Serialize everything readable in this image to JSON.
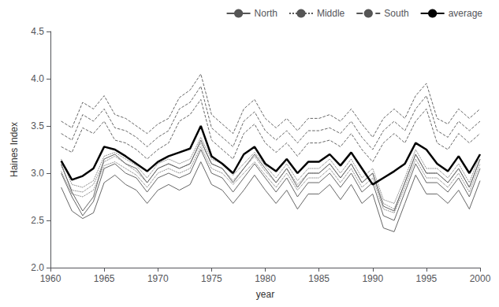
{
  "chart_data": {
    "type": "line",
    "x_label": "year",
    "y_label": "Haines Index",
    "x": [
      1961,
      1962,
      1963,
      1964,
      1965,
      1966,
      1967,
      1968,
      1969,
      1970,
      1971,
      1972,
      1973,
      1974,
      1975,
      1976,
      1977,
      1978,
      1979,
      1980,
      1981,
      1982,
      1983,
      1984,
      1985,
      1986,
      1987,
      1988,
      1989,
      1990,
      1991,
      1992,
      1993,
      1994,
      1995,
      1996,
      1997,
      1998,
      1999,
      2000
    ],
    "xlim": [
      1960,
      2000
    ],
    "xticks": [
      1960,
      1965,
      1970,
      1975,
      1980,
      1985,
      1990,
      1995,
      2000
    ],
    "ylim": [
      2.0,
      4.5
    ],
    "yticks": [
      {
        "value": 2.0,
        "label": "2.0"
      },
      2.5,
      {
        "value": 3.0,
        "label": "3.0"
      },
      3.5,
      {
        "value": 4.0,
        "label": "4.0"
      },
      4.5
    ],
    "grid": false,
    "legend": "upper right",
    "series": [
      {
        "name": "North",
        "color": "#555555",
        "line_style": "solid",
        "values": [
          3.1,
          2.8,
          2.6,
          2.75,
          3.15,
          3.2,
          3.1,
          3.05,
          2.9,
          3.05,
          3.1,
          3.05,
          3.1,
          3.35,
          3.1,
          3.05,
          2.9,
          3.05,
          3.2,
          3.05,
          2.9,
          3.05,
          2.85,
          3.0,
          3.0,
          3.1,
          2.95,
          3.1,
          2.9,
          3.0,
          2.65,
          2.6,
          2.9,
          3.2,
          3.0,
          3.0,
          2.9,
          3.05,
          2.85,
          3.15
        ]
      },
      {
        "name": "North",
        "color": "#555555",
        "line_style": "solid",
        "values": [
          3.0,
          2.75,
          2.55,
          2.7,
          3.05,
          3.1,
          3.0,
          2.95,
          2.8,
          2.95,
          3.0,
          2.95,
          3.0,
          3.25,
          3.0,
          2.95,
          2.8,
          2.95,
          3.1,
          2.95,
          2.8,
          2.95,
          2.75,
          2.9,
          2.9,
          3.0,
          2.85,
          3.0,
          2.8,
          2.9,
          2.55,
          2.5,
          2.8,
          3.1,
          2.9,
          2.9,
          2.8,
          2.95,
          2.75,
          3.05
        ]
      },
      {
        "name": "North",
        "color": "#555555",
        "line_style": "solid",
        "values": [
          2.85,
          2.6,
          2.52,
          2.58,
          2.9,
          2.98,
          2.88,
          2.82,
          2.68,
          2.82,
          2.88,
          2.82,
          2.88,
          3.12,
          2.88,
          2.82,
          2.68,
          2.82,
          2.98,
          2.82,
          2.68,
          2.82,
          2.62,
          2.78,
          2.78,
          2.88,
          2.72,
          2.88,
          2.68,
          2.78,
          2.42,
          2.38,
          2.68,
          2.98,
          2.78,
          2.78,
          2.68,
          2.82,
          2.62,
          2.92
        ]
      },
      {
        "name": "Middle",
        "color": "#555555",
        "line_style": "dotted",
        "values": [
          3.15,
          2.88,
          2.85,
          2.92,
          3.18,
          3.22,
          3.15,
          3.08,
          2.95,
          3.1,
          3.15,
          3.1,
          3.15,
          3.38,
          3.15,
          3.1,
          2.98,
          3.1,
          3.22,
          3.08,
          2.95,
          3.1,
          2.92,
          3.05,
          3.05,
          3.15,
          3.0,
          3.15,
          2.95,
          3.05,
          2.72,
          2.68,
          2.95,
          3.25,
          3.05,
          3.05,
          2.95,
          3.1,
          2.9,
          3.2
        ]
      },
      {
        "name": "Middle",
        "color": "#555555",
        "line_style": "dotted",
        "values": [
          3.08,
          2.82,
          2.8,
          2.88,
          3.12,
          3.18,
          3.1,
          3.02,
          2.9,
          3.05,
          3.1,
          3.05,
          3.1,
          3.32,
          3.1,
          3.05,
          2.92,
          3.05,
          3.18,
          3.02,
          2.9,
          3.05,
          2.88,
          3.0,
          3.0,
          3.1,
          2.95,
          3.1,
          2.9,
          3.0,
          2.68,
          2.62,
          2.9,
          3.2,
          3.0,
          3.0,
          2.9,
          3.05,
          2.85,
          3.15
        ]
      },
      {
        "name": "Middle",
        "color": "#555555",
        "line_style": "dotted",
        "values": [
          3.02,
          2.78,
          2.75,
          2.82,
          3.08,
          3.12,
          3.05,
          2.98,
          2.85,
          3.0,
          3.05,
          3.0,
          3.05,
          3.28,
          3.05,
          3.0,
          2.88,
          3.0,
          3.12,
          2.98,
          2.85,
          3.0,
          2.82,
          2.95,
          2.95,
          3.05,
          2.9,
          3.05,
          2.85,
          2.95,
          2.62,
          2.58,
          2.85,
          3.15,
          2.95,
          2.95,
          2.85,
          3.0,
          2.8,
          3.1
        ]
      },
      {
        "name": "South",
        "color": "#555555",
        "line_style": "dashed",
        "values": [
          3.55,
          3.48,
          3.75,
          3.68,
          3.82,
          3.62,
          3.58,
          3.5,
          3.42,
          3.52,
          3.58,
          3.8,
          3.88,
          4.05,
          3.62,
          3.52,
          3.42,
          3.68,
          3.78,
          3.58,
          3.48,
          3.58,
          3.45,
          3.58,
          3.58,
          3.62,
          3.55,
          3.68,
          3.52,
          3.38,
          3.58,
          3.68,
          3.58,
          3.82,
          3.95,
          3.58,
          3.52,
          3.68,
          3.58,
          3.68
        ]
      },
      {
        "name": "South",
        "color": "#555555",
        "line_style": "dashed",
        "values": [
          3.42,
          3.35,
          3.62,
          3.55,
          3.68,
          3.48,
          3.45,
          3.38,
          3.28,
          3.38,
          3.45,
          3.68,
          3.75,
          3.92,
          3.48,
          3.38,
          3.28,
          3.55,
          3.65,
          3.45,
          3.35,
          3.45,
          3.32,
          3.45,
          3.45,
          3.48,
          3.42,
          3.55,
          3.38,
          3.25,
          3.45,
          3.55,
          3.45,
          3.68,
          3.82,
          3.45,
          3.38,
          3.55,
          3.45,
          3.55
        ]
      },
      {
        "name": "South",
        "color": "#555555",
        "line_style": "dashed",
        "values": [
          3.28,
          3.22,
          3.48,
          3.42,
          3.55,
          3.35,
          3.32,
          3.25,
          3.15,
          3.25,
          3.32,
          3.55,
          3.62,
          3.78,
          3.35,
          3.25,
          3.15,
          3.42,
          3.52,
          3.32,
          3.22,
          3.32,
          3.18,
          3.32,
          3.32,
          3.35,
          3.28,
          3.42,
          3.25,
          3.12,
          3.32,
          3.42,
          3.32,
          3.55,
          3.68,
          3.32,
          3.25,
          3.42,
          3.32,
          3.42
        ]
      },
      {
        "name": "average",
        "color": "#000000",
        "line_style": "solid",
        "values": [
          3.13,
          2.93,
          2.97,
          3.05,
          3.28,
          3.25,
          3.18,
          3.1,
          3.02,
          3.12,
          3.18,
          3.22,
          3.26,
          3.5,
          3.18,
          3.1,
          3.0,
          3.2,
          3.28,
          3.1,
          3.02,
          3.15,
          3.0,
          3.12,
          3.12,
          3.2,
          3.08,
          3.22,
          3.05,
          2.88,
          2.95,
          3.02,
          3.1,
          3.32,
          3.25,
          3.1,
          3.02,
          3.18,
          3.0,
          3.2
        ]
      }
    ]
  }
}
